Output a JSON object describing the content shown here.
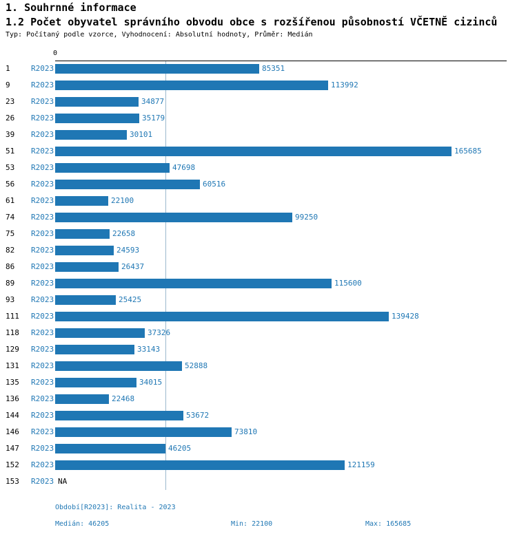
{
  "header": {
    "title": "1. Souhrnné informace",
    "subtitle": "1.2 Počet obyvatel správního obvodu obce s rozšířenou působností VČETNĚ cizinců",
    "meta": "Typ: Počítaný podle vzorce, Vyhodnocení: Absolutní hodnoty, Průměr: Medián"
  },
  "colors": {
    "accent": "#1f77b4",
    "bar": "#1f77b4",
    "axis": "#000000",
    "median_line": "#9bb8cc"
  },
  "chart_data": {
    "type": "bar",
    "orientation": "horizontal",
    "title": "1.2 Počet obyvatel správního obvodu obce s rozšířenou působností VČETNĚ cizinců",
    "series_label": "R2023",
    "axis_zero_label": "0",
    "xlim": [
      0,
      165685
    ],
    "grid": "single vertical median gridline",
    "median": 46205,
    "min": 22100,
    "max": 165685,
    "categories": [
      "1",
      "9",
      "23",
      "26",
      "39",
      "51",
      "53",
      "56",
      "61",
      "74",
      "75",
      "82",
      "86",
      "89",
      "93",
      "111",
      "118",
      "129",
      "131",
      "135",
      "136",
      "144",
      "146",
      "147",
      "152",
      "153"
    ],
    "values": [
      85351,
      113992,
      34877,
      35179,
      30101,
      165685,
      47698,
      60516,
      22100,
      99250,
      22658,
      24593,
      26437,
      115600,
      25425,
      139428,
      37326,
      33143,
      52888,
      34015,
      22468,
      53672,
      73810,
      46205,
      121159,
      null
    ],
    "value_labels": [
      "85351",
      "113992",
      "34877",
      "35179",
      "30101",
      "165685",
      "47698",
      "60516",
      "22100",
      "99250",
      "22658",
      "24593",
      "26437",
      "115600",
      "25425",
      "139428",
      "37326",
      "33143",
      "52888",
      "34015",
      "22468",
      "53672",
      "73810",
      "46205",
      "121159",
      "NA"
    ]
  },
  "footer": {
    "period": "Období[R2023]: Realita - 2023",
    "median": "Medián: 46205",
    "min": "Min: 22100",
    "max": "Max: 165685"
  }
}
